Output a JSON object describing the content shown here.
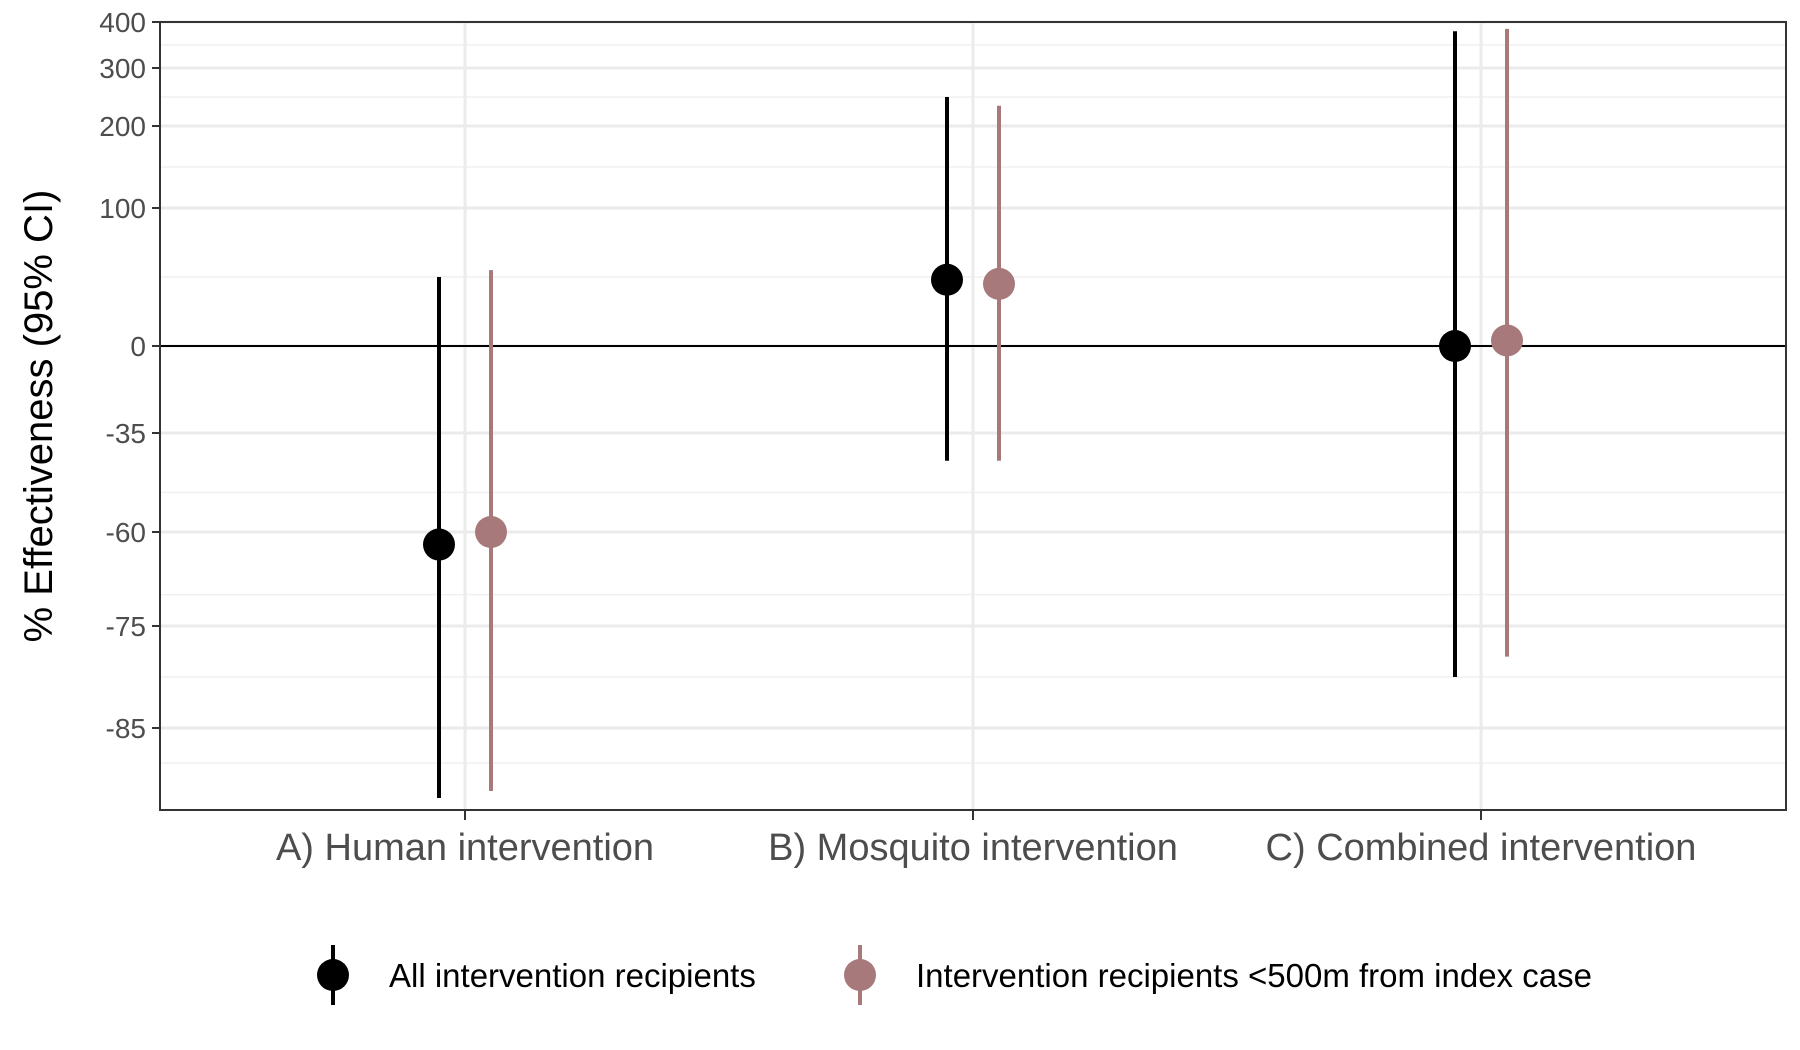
{
  "chart_data": {
    "type": "scatter",
    "subtype": "point-range",
    "title": "",
    "xlabel": "",
    "ylabel": "% Effectiveness (95% CI)",
    "y_scale": "custom-nonlinear",
    "ylim": [
      -95,
      400
    ],
    "y_ticks": [
      "400",
      "300",
      "200",
      "100",
      "0",
      "-35",
      "-60",
      "-75",
      "-85"
    ],
    "categories": [
      "A) Human intervention",
      "B) Mosquito intervention",
      "C) Combined intervention"
    ],
    "series": [
      {
        "name": "All intervention recipients",
        "color": "#000000",
        "estimate": [
          -62,
          48,
          0
        ],
        "lower": [
          -95,
          -42,
          -80
        ],
        "upper": [
          50,
          250,
          380
        ]
      },
      {
        "name": "Intervention recipients <500m from index case",
        "color": "#a8797b",
        "estimate": [
          -60,
          45,
          4
        ],
        "lower": [
          -94,
          -42,
          -78
        ],
        "upper": [
          55,
          235,
          385
        ]
      }
    ],
    "reference_line": 0,
    "grid": true,
    "legend_position": "bottom"
  }
}
